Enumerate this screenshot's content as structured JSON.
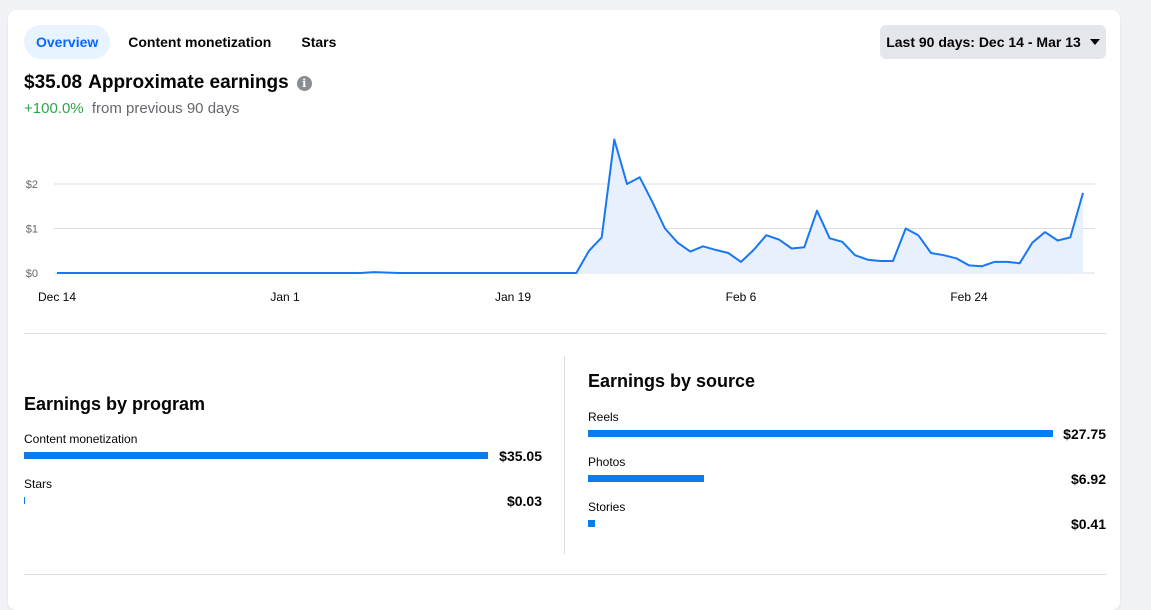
{
  "tabs": [
    {
      "label": "Overview",
      "active": true
    },
    {
      "label": "Content monetization",
      "active": false
    },
    {
      "label": "Stars",
      "active": false
    }
  ],
  "date_range": {
    "label": "Last 90 days: Dec 14 - Mar 13",
    "icon": "caret-down-icon"
  },
  "summary": {
    "amount": "$35.08",
    "label": "Approximate earnings",
    "info_icon": "info-icon",
    "change": "+100.0%",
    "change_suffix": "from previous 90 days",
    "change_color": "#31a24c"
  },
  "chart_data": {
    "type": "area",
    "x_tick_labels": [
      "Dec 14",
      "Jan 1",
      "Jan 19",
      "Feb 6",
      "Feb 24"
    ],
    "x_tick_days": [
      0,
      18,
      36,
      54,
      72
    ],
    "y_tick_labels": [
      "$0",
      "$1",
      "$2"
    ],
    "y_tick_values": [
      0,
      1,
      2
    ],
    "ylim": [
      0,
      3
    ],
    "grid": true,
    "line_color": "#1877f2",
    "fill_color": "#e7f0fc",
    "x": [
      0,
      3,
      6,
      9,
      12,
      15,
      18,
      21,
      24,
      25,
      27,
      30,
      33,
      36,
      39,
      41,
      42,
      43,
      44,
      45,
      46,
      47,
      48,
      49,
      50,
      51,
      52,
      53,
      54,
      55,
      56,
      57,
      58,
      59,
      60,
      61,
      62,
      63,
      64,
      65,
      66,
      67,
      68,
      69,
      70,
      71,
      72,
      73,
      74,
      75,
      76,
      77,
      78,
      79,
      80,
      81
    ],
    "values": [
      0,
      0,
      0,
      0,
      0,
      0,
      0,
      0,
      0,
      0.02,
      0,
      0,
      0,
      0,
      0,
      0,
      0.5,
      0.8,
      3.0,
      2.0,
      2.15,
      1.6,
      1.0,
      0.68,
      0.48,
      0.6,
      0.52,
      0.45,
      0.25,
      0.52,
      0.85,
      0.75,
      0.55,
      0.58,
      1.4,
      0.78,
      0.7,
      0.4,
      0.3,
      0.27,
      0.27,
      1.0,
      0.85,
      0.45,
      0.4,
      0.33,
      0.17,
      0.15,
      0.25,
      0.25,
      0.22,
      0.68,
      0.92,
      0.73,
      0.8,
      1.8
    ]
  },
  "program_section": {
    "title": "Earnings by program",
    "items": [
      {
        "label": "Content monetization",
        "value": "$35.05",
        "amount": 35.05
      },
      {
        "label": "Stars",
        "value": "$0.03",
        "amount": 0.03
      }
    ]
  },
  "source_section": {
    "title": "Earnings by source",
    "items": [
      {
        "label": "Reels",
        "value": "$27.75",
        "amount": 27.75
      },
      {
        "label": "Photos",
        "value": "$6.92",
        "amount": 6.92
      },
      {
        "label": "Stories",
        "value": "$0.41",
        "amount": 0.41
      }
    ]
  },
  "bar_color": "#0a7cf0"
}
